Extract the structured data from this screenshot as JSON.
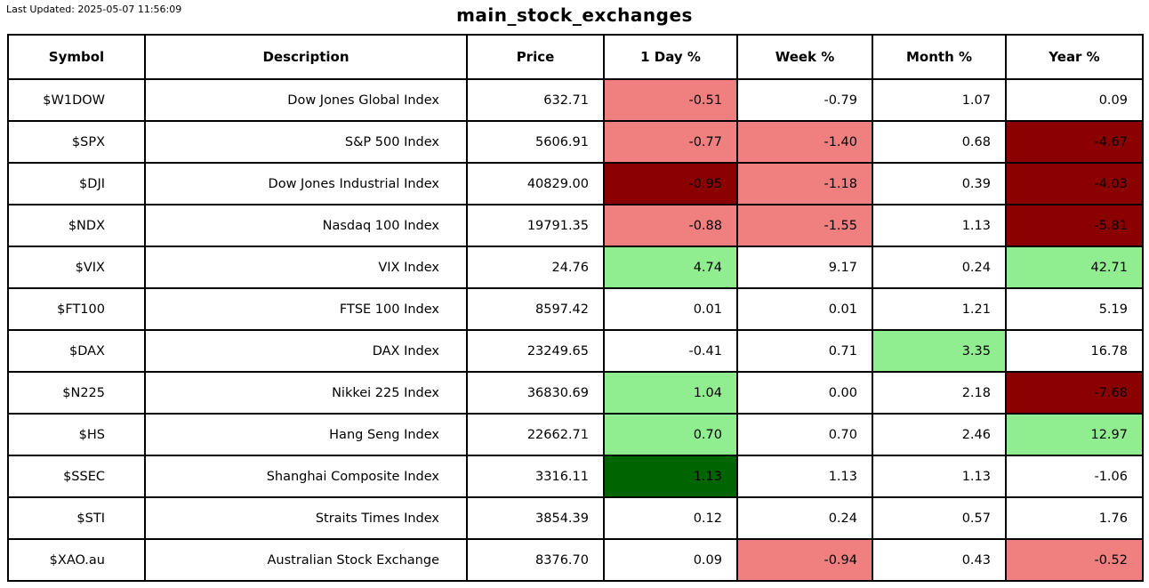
{
  "header": {
    "last_updated": "Last Updated: 2025-05-07 11:56:09",
    "title": "main_stock_exchanges"
  },
  "colors": {
    "white": "#FFFFFF",
    "light_red": "#F08080",
    "dark_red": "#8B0000",
    "light_green": "#90EE90",
    "dark_green": "#006400",
    "border": "#000000"
  },
  "chart_data": {
    "type": "table",
    "title": "main_stock_exchanges",
    "last_updated": "2025-05-07 11:56:09",
    "columns": [
      "Symbol",
      "Description",
      "Price",
      "1 Day %",
      "Week %",
      "Month %",
      "Year %"
    ],
    "rows": [
      {
        "symbol": "$W1DOW",
        "description": "Dow Jones Global Index",
        "price": "632.71",
        "day": {
          "v": "-0.51",
          "c": "light_red"
        },
        "week": {
          "v": "-0.79",
          "c": "white"
        },
        "month": {
          "v": "1.07",
          "c": "white"
        },
        "year": {
          "v": "0.09",
          "c": "white"
        }
      },
      {
        "symbol": "$SPX",
        "description": "S&P 500 Index",
        "price": "5606.91",
        "day": {
          "v": "-0.77",
          "c": "light_red"
        },
        "week": {
          "v": "-1.40",
          "c": "light_red"
        },
        "month": {
          "v": "0.68",
          "c": "white"
        },
        "year": {
          "v": "-4.67",
          "c": "dark_red"
        }
      },
      {
        "symbol": "$DJI",
        "description": "Dow Jones Industrial Index",
        "price": "40829.00",
        "day": {
          "v": "-0.95",
          "c": "dark_red"
        },
        "week": {
          "v": "-1.18",
          "c": "light_red"
        },
        "month": {
          "v": "0.39",
          "c": "white"
        },
        "year": {
          "v": "-4.03",
          "c": "dark_red"
        }
      },
      {
        "symbol": "$NDX",
        "description": "Nasdaq 100 Index",
        "price": "19791.35",
        "day": {
          "v": "-0.88",
          "c": "light_red"
        },
        "week": {
          "v": "-1.55",
          "c": "light_red"
        },
        "month": {
          "v": "1.13",
          "c": "white"
        },
        "year": {
          "v": "-5.81",
          "c": "dark_red"
        }
      },
      {
        "symbol": "$VIX",
        "description": "VIX Index",
        "price": "24.76",
        "day": {
          "v": "4.74",
          "c": "light_green"
        },
        "week": {
          "v": "9.17",
          "c": "white"
        },
        "month": {
          "v": "0.24",
          "c": "white"
        },
        "year": {
          "v": "42.71",
          "c": "light_green"
        }
      },
      {
        "symbol": "$FT100",
        "description": "FTSE 100 Index",
        "price": "8597.42",
        "day": {
          "v": "0.01",
          "c": "white"
        },
        "week": {
          "v": "0.01",
          "c": "white"
        },
        "month": {
          "v": "1.21",
          "c": "white"
        },
        "year": {
          "v": "5.19",
          "c": "white"
        }
      },
      {
        "symbol": "$DAX",
        "description": "DAX Index",
        "price": "23249.65",
        "day": {
          "v": "-0.41",
          "c": "white"
        },
        "week": {
          "v": "0.71",
          "c": "white"
        },
        "month": {
          "v": "3.35",
          "c": "light_green"
        },
        "year": {
          "v": "16.78",
          "c": "white"
        }
      },
      {
        "symbol": "$N225",
        "description": "Nikkei 225 Index",
        "price": "36830.69",
        "day": {
          "v": "1.04",
          "c": "light_green"
        },
        "week": {
          "v": "0.00",
          "c": "white"
        },
        "month": {
          "v": "2.18",
          "c": "white"
        },
        "year": {
          "v": "-7.68",
          "c": "dark_red"
        }
      },
      {
        "symbol": "$HS",
        "description": "Hang Seng Index",
        "price": "22662.71",
        "day": {
          "v": "0.70",
          "c": "light_green"
        },
        "week": {
          "v": "0.70",
          "c": "white"
        },
        "month": {
          "v": "2.46",
          "c": "white"
        },
        "year": {
          "v": "12.97",
          "c": "light_green"
        }
      },
      {
        "symbol": "$SSEC",
        "description": "Shanghai Composite Index",
        "price": "3316.11",
        "day": {
          "v": "1.13",
          "c": "dark_green"
        },
        "week": {
          "v": "1.13",
          "c": "white"
        },
        "month": {
          "v": "1.13",
          "c": "white"
        },
        "year": {
          "v": "-1.06",
          "c": "white"
        }
      },
      {
        "symbol": "$STI",
        "description": "Straits Times Index",
        "price": "3854.39",
        "day": {
          "v": "0.12",
          "c": "white"
        },
        "week": {
          "v": "0.24",
          "c": "white"
        },
        "month": {
          "v": "0.57",
          "c": "white"
        },
        "year": {
          "v": "1.76",
          "c": "white"
        }
      },
      {
        "symbol": "$XAO.au",
        "description": "Australian Stock Exchange",
        "price": "8376.70",
        "day": {
          "v": "0.09",
          "c": "white"
        },
        "week": {
          "v": "-0.94",
          "c": "light_red"
        },
        "month": {
          "v": "0.43",
          "c": "white"
        },
        "year": {
          "v": "-0.52",
          "c": "light_red"
        }
      }
    ]
  }
}
